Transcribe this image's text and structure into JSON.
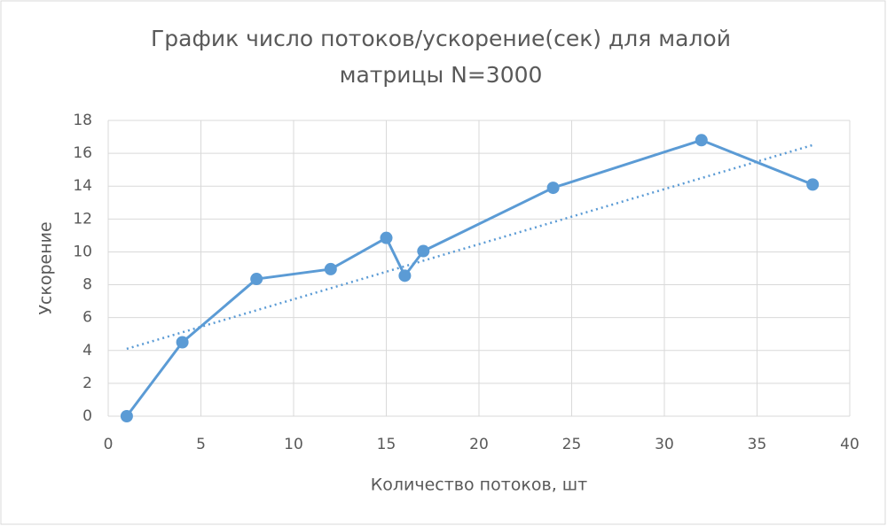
{
  "chart_data": {
    "type": "line",
    "title": [
      "График число потоков/ускорение(сек) для малой",
      "матрицы N=3000"
    ],
    "xlabel": "Количество потоков, шт",
    "ylabel": "Ускорение",
    "x": [
      1,
      4,
      8,
      12,
      15,
      16,
      17,
      24,
      32,
      38
    ],
    "series": [
      {
        "color": "#5b9bd5",
        "values": [
          0,
          4.5,
          8.35,
          8.95,
          10.85,
          8.55,
          10.05,
          13.9,
          16.8,
          14.1
        ]
      }
    ],
    "trendline": {
      "x": [
        1,
        38
      ],
      "values": [
        4.1,
        16.5
      ],
      "color": "#5b9bd5",
      "style": "dotted"
    },
    "xlim": [
      0,
      40
    ],
    "xticks": [
      0,
      5,
      10,
      15,
      20,
      25,
      30,
      35,
      40
    ],
    "ylim": [
      0,
      18
    ],
    "yticks": [
      0,
      2,
      4,
      6,
      8,
      10,
      12,
      14,
      16,
      18
    ],
    "grid": true
  }
}
